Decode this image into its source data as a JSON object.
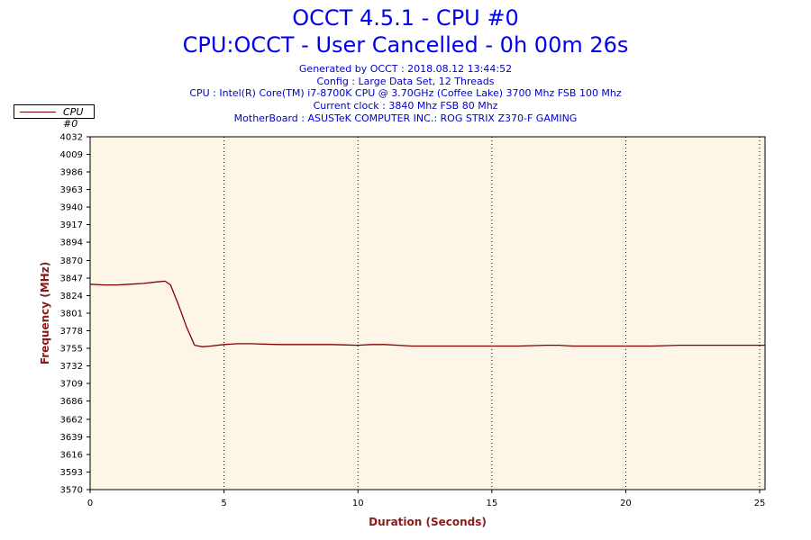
{
  "chart_data": {
    "type": "line",
    "title": "OCCT 4.5.1 - CPU #0",
    "subtitle": "CPU:OCCT - User Cancelled - 0h 00m 26s",
    "info_lines": [
      "Generated by OCCT : 2018.08.12 13:44:52",
      "Config : Large Data Set, 12 Threads",
      "CPU : Intel(R) Core(TM) i7-8700K CPU @ 3.70GHz (Coffee Lake) 3700 Mhz FSB 100 Mhz",
      "Current clock : 3840 Mhz FSB 80 Mhz",
      "MotherBoard : ASUSTeK COMPUTER INC.: ROG STRIX Z370-F GAMING"
    ],
    "xlabel": "Duration (Seconds)",
    "ylabel": "Frequency (MHz)",
    "xlim": [
      0,
      25.2
    ],
    "ylim": [
      3570,
      4032
    ],
    "x_ticks": [
      "0",
      "5",
      "10",
      "15",
      "20",
      "25"
    ],
    "y_ticks": [
      "3570",
      "3593",
      "3616",
      "3639",
      "3662",
      "3686",
      "3709",
      "3732",
      "3755",
      "3778",
      "3801",
      "3824",
      "3847",
      "3870",
      "3894",
      "3917",
      "3940",
      "3963",
      "3986",
      "4009",
      "4032"
    ],
    "grid": "vertical dotted",
    "legend_position": "top-left",
    "colors": {
      "line": "#800000",
      "plot_bg": "#fdf5e6",
      "title": "#0000ee",
      "axis_label": "#8b1a1a"
    },
    "series": [
      {
        "name": "CPU #0",
        "x": [
          0,
          0.5,
          1,
          1.5,
          2,
          2.5,
          2.8,
          3.0,
          3.3,
          3.6,
          3.9,
          4.2,
          4.5,
          5,
          5.5,
          6,
          7,
          8,
          9,
          10,
          10.5,
          11,
          11.5,
          12,
          13,
          14,
          15,
          16,
          17,
          17.5,
          18,
          19,
          20,
          21,
          22,
          23,
          24,
          25,
          25.2
        ],
        "y": [
          3839,
          3838,
          3838,
          3839,
          3840,
          3842,
          3843,
          3838,
          3812,
          3783,
          3759,
          3757,
          3758,
          3760,
          3761,
          3761,
          3760,
          3760,
          3760,
          3759,
          3760,
          3760,
          3759,
          3758,
          3758,
          3758,
          3758,
          3758,
          3759,
          3759,
          3758,
          3758,
          3758,
          3758,
          3759,
          3759,
          3759,
          3759,
          3759
        ]
      }
    ]
  }
}
